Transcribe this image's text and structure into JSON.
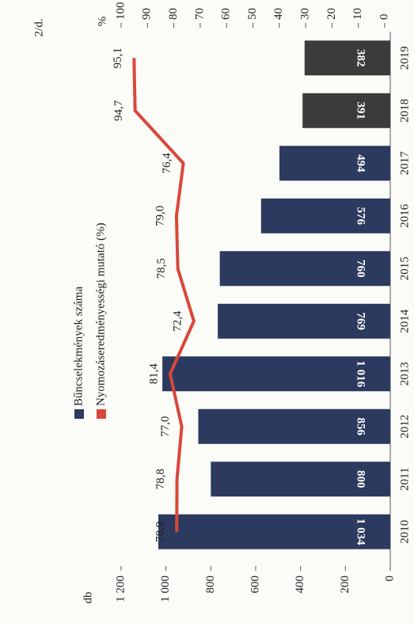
{
  "chart_data": {
    "type": "bar",
    "page_label": "2/d.",
    "y_label": "db",
    "y2_label": "%",
    "categories": [
      "2010",
      "2011",
      "2012",
      "2013",
      "2014",
      "2015",
      "2016",
      "2017",
      "2018",
      "2019"
    ],
    "series": [
      {
        "name": "Bűncselekmények száma",
        "type": "bar",
        "color": "#2b3a5e",
        "colors": [
          "#2b3a5e",
          "#2b3a5e",
          "#2b3a5e",
          "#2b3a5e",
          "#2b3a5e",
          "#2b3a5e",
          "#2b3a5e",
          "#2b3a5e",
          "#3b3b3b",
          "#3b3b3b"
        ],
        "values": [
          1034,
          800,
          856,
          1016,
          769,
          760,
          576,
          494,
          391,
          382
        ],
        "value_labels": [
          "1 034",
          "800",
          "856",
          "1 016",
          "769",
          "760",
          "576",
          "494",
          "391",
          "382"
        ]
      },
      {
        "name": "Nyomozáseredményességi mutató (%)",
        "type": "line",
        "axis": "y2",
        "color": "#d8483a",
        "values": [
          78.9,
          78.8,
          77.0,
          81.4,
          72.4,
          78.5,
          79.0,
          76.4,
          94.7,
          95.1
        ],
        "value_labels": [
          "78,9",
          "78,8",
          "77,0",
          "81,4",
          "72,4",
          "78,5",
          "79,0",
          "76,4",
          "94,7",
          "95,1"
        ]
      }
    ],
    "ylim": [
      0,
      1200
    ],
    "yticks": [
      0,
      200,
      400,
      600,
      800,
      {
        "value": 1000,
        "label": "1 000"
      },
      {
        "value": 1200,
        "label": "1 200"
      }
    ],
    "y2lim": [
      0,
      100
    ],
    "y2ticks": [
      0,
      10,
      20,
      30,
      40,
      50,
      60,
      70,
      80,
      90,
      100
    ]
  }
}
